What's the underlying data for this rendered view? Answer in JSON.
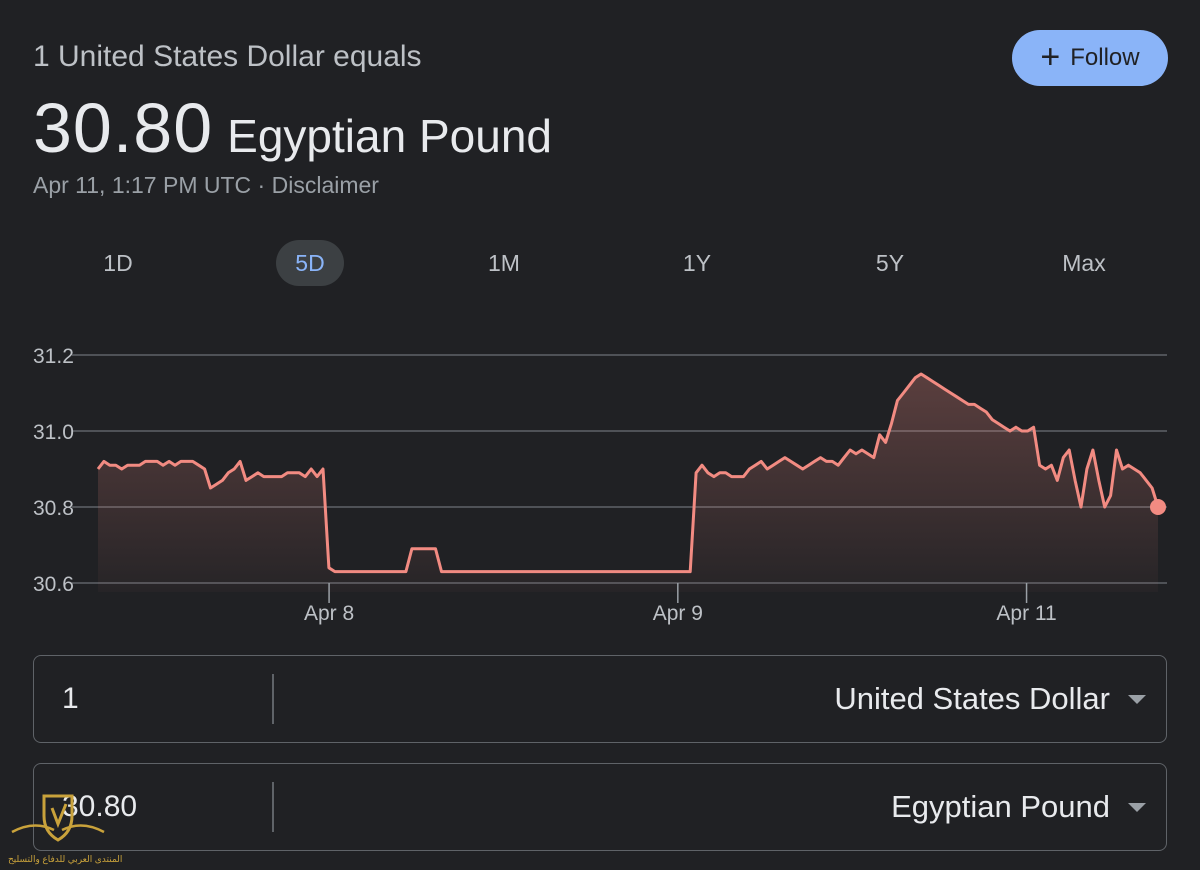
{
  "header": {
    "subtitle": "1 United States Dollar equals",
    "rate_value": "30.80",
    "rate_unit": "Egyptian Pound",
    "timestamp": "Apr 11, 1:17 PM UTC",
    "separator": "·",
    "disclaimer": "Disclaimer",
    "follow_label": "Follow"
  },
  "tabs": [
    {
      "label": "1D",
      "active": false
    },
    {
      "label": "5D",
      "active": true
    },
    {
      "label": "1M",
      "active": false
    },
    {
      "label": "1Y",
      "active": false
    },
    {
      "label": "5Y",
      "active": false
    },
    {
      "label": "Max",
      "active": false
    }
  ],
  "chart_data": {
    "type": "area",
    "ylim": [
      30.6,
      31.2
    ],
    "yticks": [
      "31.2",
      "31.0",
      "30.8",
      "30.6"
    ],
    "xticks": [
      {
        "label": "Apr 8",
        "t": 0.218
      },
      {
        "label": "Apr 9",
        "t": 0.547
      },
      {
        "label": "Apr 11",
        "t": 0.876
      }
    ],
    "grid": true,
    "line_color": "#f28b82",
    "values": [
      30.9,
      30.92,
      30.91,
      30.91,
      30.9,
      30.91,
      30.91,
      30.91,
      30.92,
      30.92,
      30.92,
      30.91,
      30.92,
      30.91,
      30.92,
      30.92,
      30.92,
      30.91,
      30.9,
      30.85,
      30.86,
      30.87,
      30.89,
      30.9,
      30.92,
      30.87,
      30.88,
      30.89,
      30.88,
      30.88,
      30.88,
      30.88,
      30.89,
      30.89,
      30.89,
      30.88,
      30.9,
      30.88,
      30.9,
      30.64,
      30.63,
      30.63,
      30.63,
      30.63,
      30.63,
      30.63,
      30.63,
      30.63,
      30.63,
      30.63,
      30.63,
      30.63,
      30.63,
      30.69,
      30.69,
      30.69,
      30.69,
      30.69,
      30.63,
      30.63,
      30.63,
      30.63,
      30.63,
      30.63,
      30.63,
      30.63,
      30.63,
      30.63,
      30.63,
      30.63,
      30.63,
      30.63,
      30.63,
      30.63,
      30.63,
      30.63,
      30.63,
      30.63,
      30.63,
      30.63,
      30.63,
      30.63,
      30.63,
      30.63,
      30.63,
      30.63,
      30.63,
      30.63,
      30.63,
      30.63,
      30.63,
      30.63,
      30.63,
      30.63,
      30.63,
      30.63,
      30.63,
      30.63,
      30.63,
      30.63,
      30.63,
      30.89,
      30.91,
      30.89,
      30.88,
      30.89,
      30.89,
      30.88,
      30.88,
      30.88,
      30.9,
      30.91,
      30.92,
      30.9,
      30.91,
      30.92,
      30.93,
      30.92,
      30.91,
      30.9,
      30.91,
      30.92,
      30.93,
      30.92,
      30.92,
      30.91,
      30.93,
      30.95,
      30.94,
      30.95,
      30.94,
      30.93,
      30.99,
      30.97,
      31.02,
      31.08,
      31.1,
      31.12,
      31.14,
      31.15,
      31.14,
      31.13,
      31.12,
      31.11,
      31.1,
      31.09,
      31.08,
      31.07,
      31.07,
      31.06,
      31.05,
      31.03,
      31.02,
      31.01,
      31.0,
      31.01,
      31.0,
      31.0,
      31.01,
      30.91,
      30.9,
      30.91,
      30.87,
      30.93,
      30.95,
      30.87,
      30.8,
      30.9,
      30.95,
      30.87,
      30.8,
      30.83,
      30.95,
      30.9,
      30.91,
      30.9,
      30.89,
      30.87,
      30.85,
      30.8
    ],
    "last_value": 30.8
  },
  "converter": {
    "from": {
      "amount": "1",
      "currency": "United States Dollar"
    },
    "to": {
      "amount": "30.80",
      "currency": "Egyptian Pound"
    }
  },
  "watermark": {
    "text": "المنتدى العربي للدفاع والتسليح"
  }
}
